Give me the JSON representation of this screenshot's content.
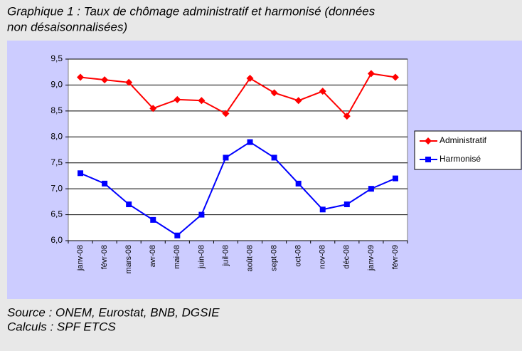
{
  "chart_data": {
    "type": "line",
    "title": [
      "Graphique 1 : Taux de chômage administratif et harmonisé (données",
      "non désaisonnalisées)"
    ],
    "notes": [
      "Source : ONEM, Eurostat, BNB, DGSIE",
      "Calculs : SPF ETCS"
    ],
    "categories": [
      "janv-08",
      "févr-08",
      "mars-08",
      "avr-08",
      "mai-08",
      "juin-08",
      "juil-08",
      "août-08",
      "sept-08",
      "oct-08",
      "nov-08",
      "déc-08",
      "janv-09",
      "févr-09"
    ],
    "series": [
      {
        "name": "Administratif",
        "color": "#ff0000",
        "marker": "diamond",
        "values": [
          9.15,
          9.1,
          9.05,
          8.55,
          8.72,
          8.7,
          8.45,
          9.13,
          8.85,
          8.7,
          8.88,
          8.4,
          9.22,
          9.15
        ]
      },
      {
        "name": "Harmonisé",
        "color": "#0000ff",
        "marker": "square",
        "values": [
          7.3,
          7.1,
          6.7,
          6.4,
          6.1,
          6.5,
          7.6,
          7.9,
          7.6,
          7.1,
          6.6,
          6.7,
          7.0,
          7.2
        ]
      }
    ],
    "ylim": [
      6.0,
      9.5
    ],
    "yticks": [
      {
        "value": 6.0,
        "label": "6,0"
      },
      {
        "value": 6.5,
        "label": "6,5"
      },
      {
        "value": 7.0,
        "label": "7,0"
      },
      {
        "value": 7.5,
        "label": "7,5"
      },
      {
        "value": 8.0,
        "label": "8,0"
      },
      {
        "value": 8.5,
        "label": "8,5"
      },
      {
        "value": 9.0,
        "label": "9,0"
      },
      {
        "value": 9.5,
        "label": "9,5"
      }
    ],
    "grid": true,
    "legend": "right"
  }
}
